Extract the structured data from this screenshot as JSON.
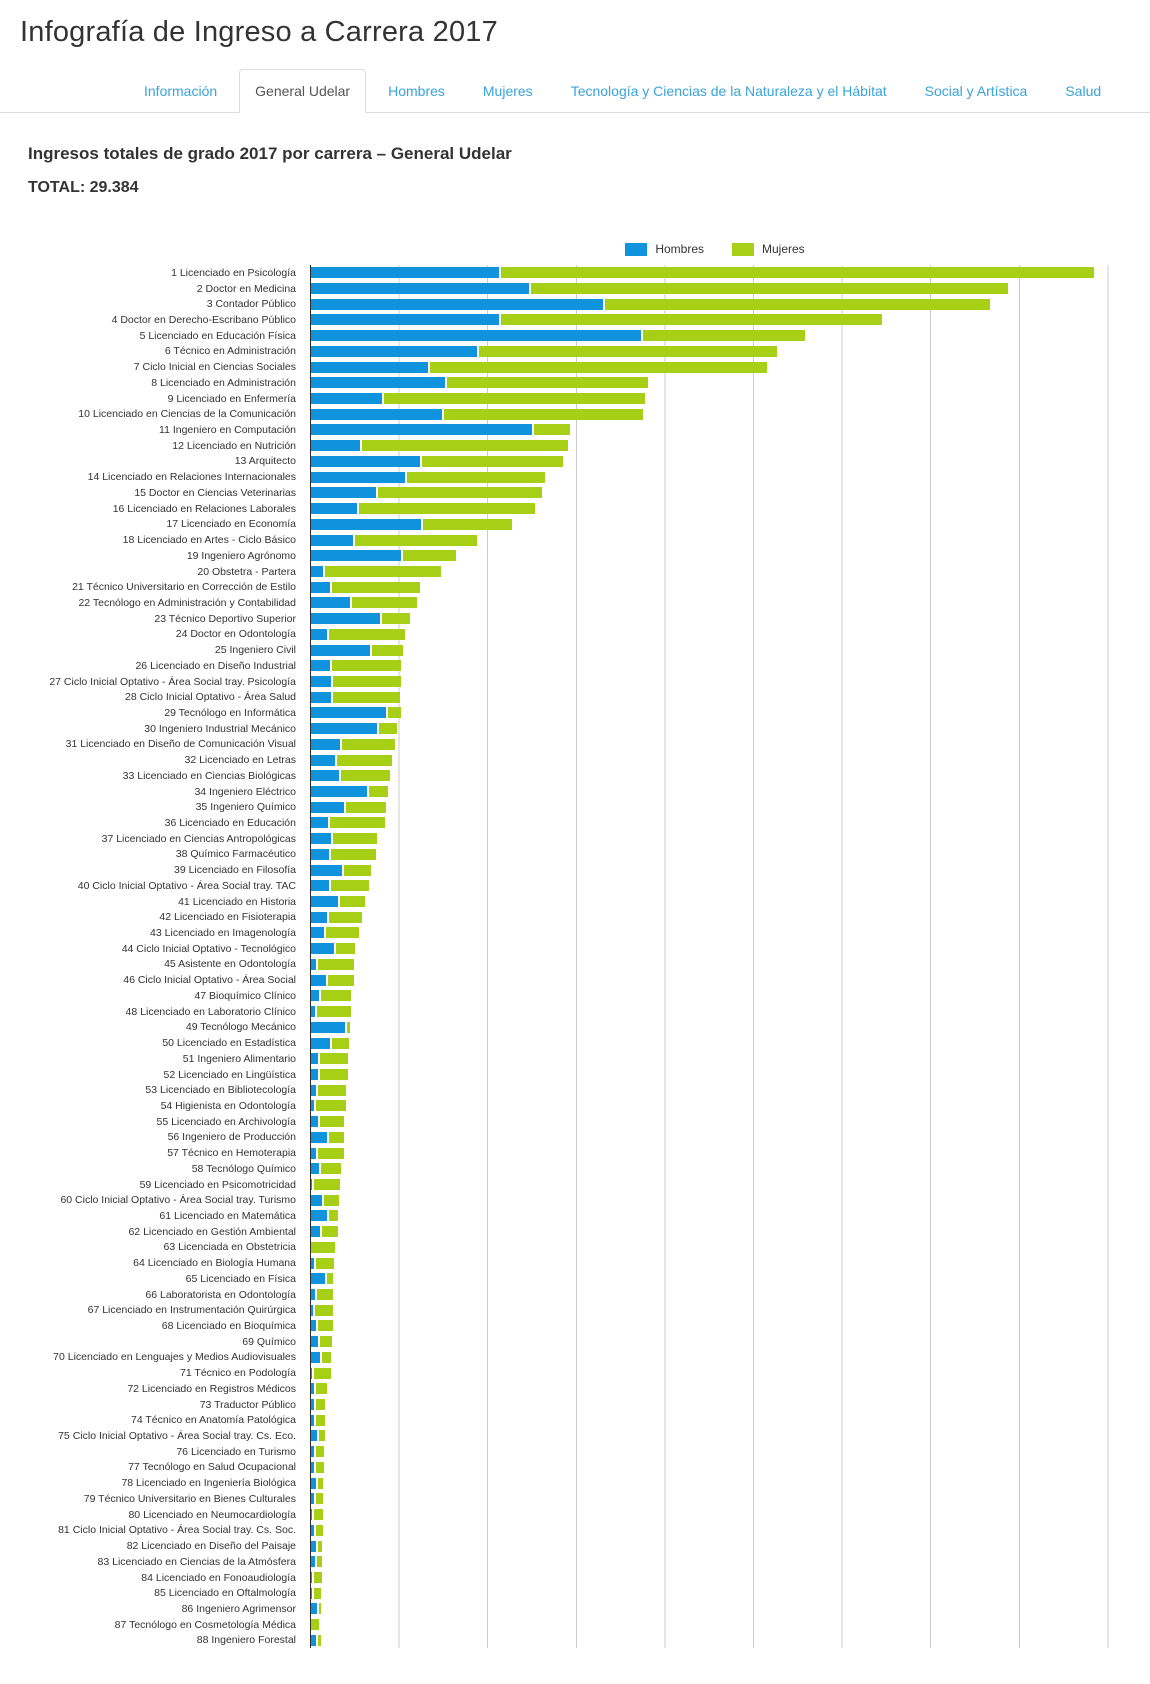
{
  "page": {
    "title": "Infografía de Ingreso a Carrera 2017"
  },
  "tabs": [
    {
      "label": "Información",
      "active": false
    },
    {
      "label": "General Udelar",
      "active": true
    },
    {
      "label": "Hombres",
      "active": false
    },
    {
      "label": "Mujeres",
      "active": false
    },
    {
      "label": "Tecnología y Ciencias de la Naturaleza y el Hábitat",
      "active": false
    },
    {
      "label": "Social y Artística",
      "active": false
    },
    {
      "label": "Salud",
      "active": false
    }
  ],
  "section": {
    "heading": "Ingresos totales de grado 2017 por carrera – General Udelar",
    "total_label": "TOTAL: 29.384"
  },
  "legend": {
    "hombres": "Hombres",
    "mujeres": "Mujeres"
  },
  "colors": {
    "hombres": "#0f93dd",
    "mujeres": "#a6cf16",
    "gridline": "#cccccc",
    "axis": "#2b2b2b",
    "tab_link": "#39a3dc",
    "text": "#333333"
  },
  "chart_data": {
    "type": "bar",
    "orientation": "horizontal",
    "stacked": true,
    "title": "Ingresos totales de grado 2017 por carrera – General Udelar",
    "total_shown": 29384,
    "legend_position": "top-center",
    "grid": "vertical",
    "x_gridline_step": 250,
    "x_axis_labels_visible": false,
    "note": "values estimated from bar lengths; one gridline interval = 250 ingresos",
    "categories": [
      "1 Licenciado en Psicología",
      "2 Doctor en Medicina",
      "3 Contador Público",
      "4 Doctor en Derecho-Escribano Público",
      "5 Licenciado en Educación Física",
      "6 Técnico en Administración",
      "7 Ciclo Inicial en Ciencias Sociales",
      "8 Licenciado en Administración",
      "9 Licenciado en Enfermería",
      "10 Licenciado en Ciencias de la Comunicación",
      "11 Ingeniero en Computación",
      "12 Licenciado en Nutrición",
      "13 Arquitecto",
      "14 Licenciado en Relaciones Internacionales",
      "15 Doctor en Ciencias Veterinarias",
      "16 Licenciado en Relaciones Laborales",
      "17 Licenciado en Economía",
      "18 Licenciado en Artes - Ciclo Básico",
      "19 Ingeniero Agrónomo",
      "20 Obstetra - Partera",
      "21 Técnico Universitario en Corrección de Estilo",
      "22 Tecnólogo en Administración y Contabilidad",
      "23 Técnico Deportivo Superior",
      "24 Doctor en Odontología",
      "25 Ingeniero Civil",
      "26 Licenciado en Diseño Industrial",
      "27 Ciclo Inicial Optativo - Área Social tray. Psicología",
      "28 Ciclo Inicial Optativo - Área Salud",
      "29 Tecnólogo en Informática",
      "30 Ingeniero Industrial Mecánico",
      "31 Licenciado en Diseño de Comunicación Visual",
      "32 Licenciado en Letras",
      "33 Licenciado en Ciencias Biológicas",
      "34 Ingeniero Eléctrico",
      "35 Ingeniero Químico",
      "36 Licenciado en Educación",
      "37 Licenciado en Ciencias Antropológicas",
      "38 Químico Farmacéutico",
      "39 Licenciado en Filosofía",
      "40 Ciclo Inicial Optativo - Área Social tray. TAC",
      "41 Licenciado en Historia",
      "42 Licenciado en Fisioterapia",
      "43 Licenciado en Imagenología",
      "44 Ciclo Inicial Optativo - Tecnológico",
      "45 Asistente en Odontología",
      "46 Ciclo Inicial Optativo - Área Social",
      "47 Bioquímico Clínico",
      "48 Licenciado en Laboratorio Clínico",
      "49 Tecnólogo Mecánico",
      "50 Licenciado en Estadística",
      "51 Ingeniero Alimentario",
      "52 Licenciado en Lingüística",
      "53 Licenciado en Bibliotecología",
      "54 Higienista en Odontología",
      "55 Licenciado en Archivología",
      "56 Ingeniero de Producción",
      "57 Técnico en Hemoterapia",
      "58 Tecnólogo Químico",
      "59 Licenciado en Psicomotricidad",
      "60 Ciclo Inicial Optativo - Área Social tray. Turismo",
      "61 Licenciado en Matemática",
      "62 Licenciado en Gestión Ambiental",
      "63 Licenciada en Obstetricia",
      "64 Licenciado en Biología Humana",
      "65 Licenciado en Física",
      "66 Laboratorista en Odontología",
      "67 Licenciado en Instrumentación Quirúrgica",
      "68 Licenciado en Bioquímica",
      "69 Químico",
      "70 Licenciado en Lenguajes y Medios Audiovisuales",
      "71 Técnico en Podología",
      "72 Licenciado en Registros Médicos",
      "73 Traductor Público",
      "74 Técnico en Anatomía Patológica",
      "75 Ciclo Inicial Optativo - Área Social tray. Cs. Eco.",
      "76 Licenciado en Turismo",
      "77 Tecnólogo en Salud Ocupacional",
      "78 Licenciado en Ingeniería Biológica",
      "79 Técnico Universitario en Bienes Culturales",
      "80 Licenciado en Neumocardiología",
      "81 Ciclo Inicial Optativo - Área Social tray. Cs. Soc.",
      "82 Licenciado en Diseño del Paisaje",
      "83 Licenciado en Ciencias de la Atmósfera",
      "84 Licenciado en Fonoaudiología",
      "85 Licenciado en Oftalmología",
      "86 Ingeniero Agrimensor",
      "87 Tecnólogo en Cosmetología Médica",
      "88 Ingeniero Forestal"
    ],
    "series": [
      {
        "name": "Hombres",
        "values": [
          530,
          614,
          825,
          530,
          931,
          468,
          329,
          378,
          200,
          369,
          624,
          138,
          308,
          265,
          183,
          129,
          310,
          119,
          254,
          33,
          53,
          111,
          195,
          46,
          167,
          54,
          56,
          56,
          212,
          187,
          82,
          67,
          80,
          158,
          94,
          47,
          56,
          50,
          87,
          51,
          75,
          45,
          37,
          66,
          13,
          41,
          23,
          12,
          96,
          54,
          21,
          19,
          14,
          9,
          19,
          44,
          14,
          22,
          2,
          32,
          46,
          25,
          0,
          9,
          40,
          11,
          6,
          14,
          21,
          25,
          3,
          7,
          9,
          9,
          16,
          9,
          7,
          13,
          8,
          3,
          9,
          14,
          12,
          2,
          2,
          17,
          0,
          13
        ]
      },
      {
        "name": "Mujeres",
        "values": [
          1675,
          1346,
          1085,
          1076,
          458,
          842,
          952,
          567,
          736,
          561,
          101,
          583,
          397,
          389,
          462,
          497,
          251,
          343,
          148,
          329,
          250,
          183,
          78,
          213,
          86,
          194,
          192,
          191,
          37,
          49,
          149,
          156,
          137,
          53,
          111,
          155,
          124,
          129,
          77,
          107,
          72,
          94,
          93,
          52,
          102,
          74,
          84,
          94,
          9,
          49,
          77,
          79,
          80,
          84,
          70,
          44,
          72,
          57,
          74,
          42,
          24,
          45,
          68,
          50,
          17,
          46,
          50,
          42,
          33,
          27,
          48,
          33,
          26,
          24,
          17,
          22,
          23,
          16,
          20,
          24,
          18,
          12,
          13,
          23,
          22,
          6,
          23,
          9
        ]
      }
    ]
  }
}
